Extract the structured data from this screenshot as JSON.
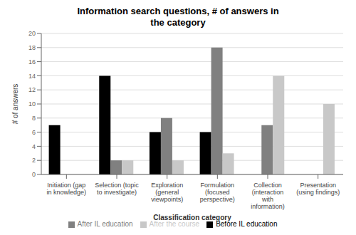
{
  "chart_data": {
    "type": "bar",
    "title": "Information search questions, # of answers in\nthe category",
    "xlabel": "Classification category",
    "ylabel": "# of answers",
    "categories": [
      "Initiation (gap\nin knowledge)",
      "Selection (topic\nto investigate)",
      "Exploration\n(general\nviewpoints)",
      "Formulation\n(focused\nperspective)",
      "Collection\n(interaction\nwith\ninformation)",
      "Presentation\n(using findings)"
    ],
    "series": [
      {
        "name": "Before IL education",
        "color": "#000000",
        "values": [
          7,
          14,
          6,
          6,
          0,
          0
        ]
      },
      {
        "name": "After IL education",
        "color": "#808080",
        "values": [
          0,
          2,
          8,
          18,
          7,
          0
        ]
      },
      {
        "name": "After the course",
        "color": "#c8c8c8",
        "values": [
          0,
          2,
          2,
          3,
          14,
          10
        ]
      }
    ],
    "ylim": [
      0,
      20
    ],
    "yticks": [
      0,
      2,
      4,
      6,
      8,
      10,
      12,
      14,
      16,
      18,
      20
    ],
    "grid": true,
    "legend": "bottom"
  }
}
